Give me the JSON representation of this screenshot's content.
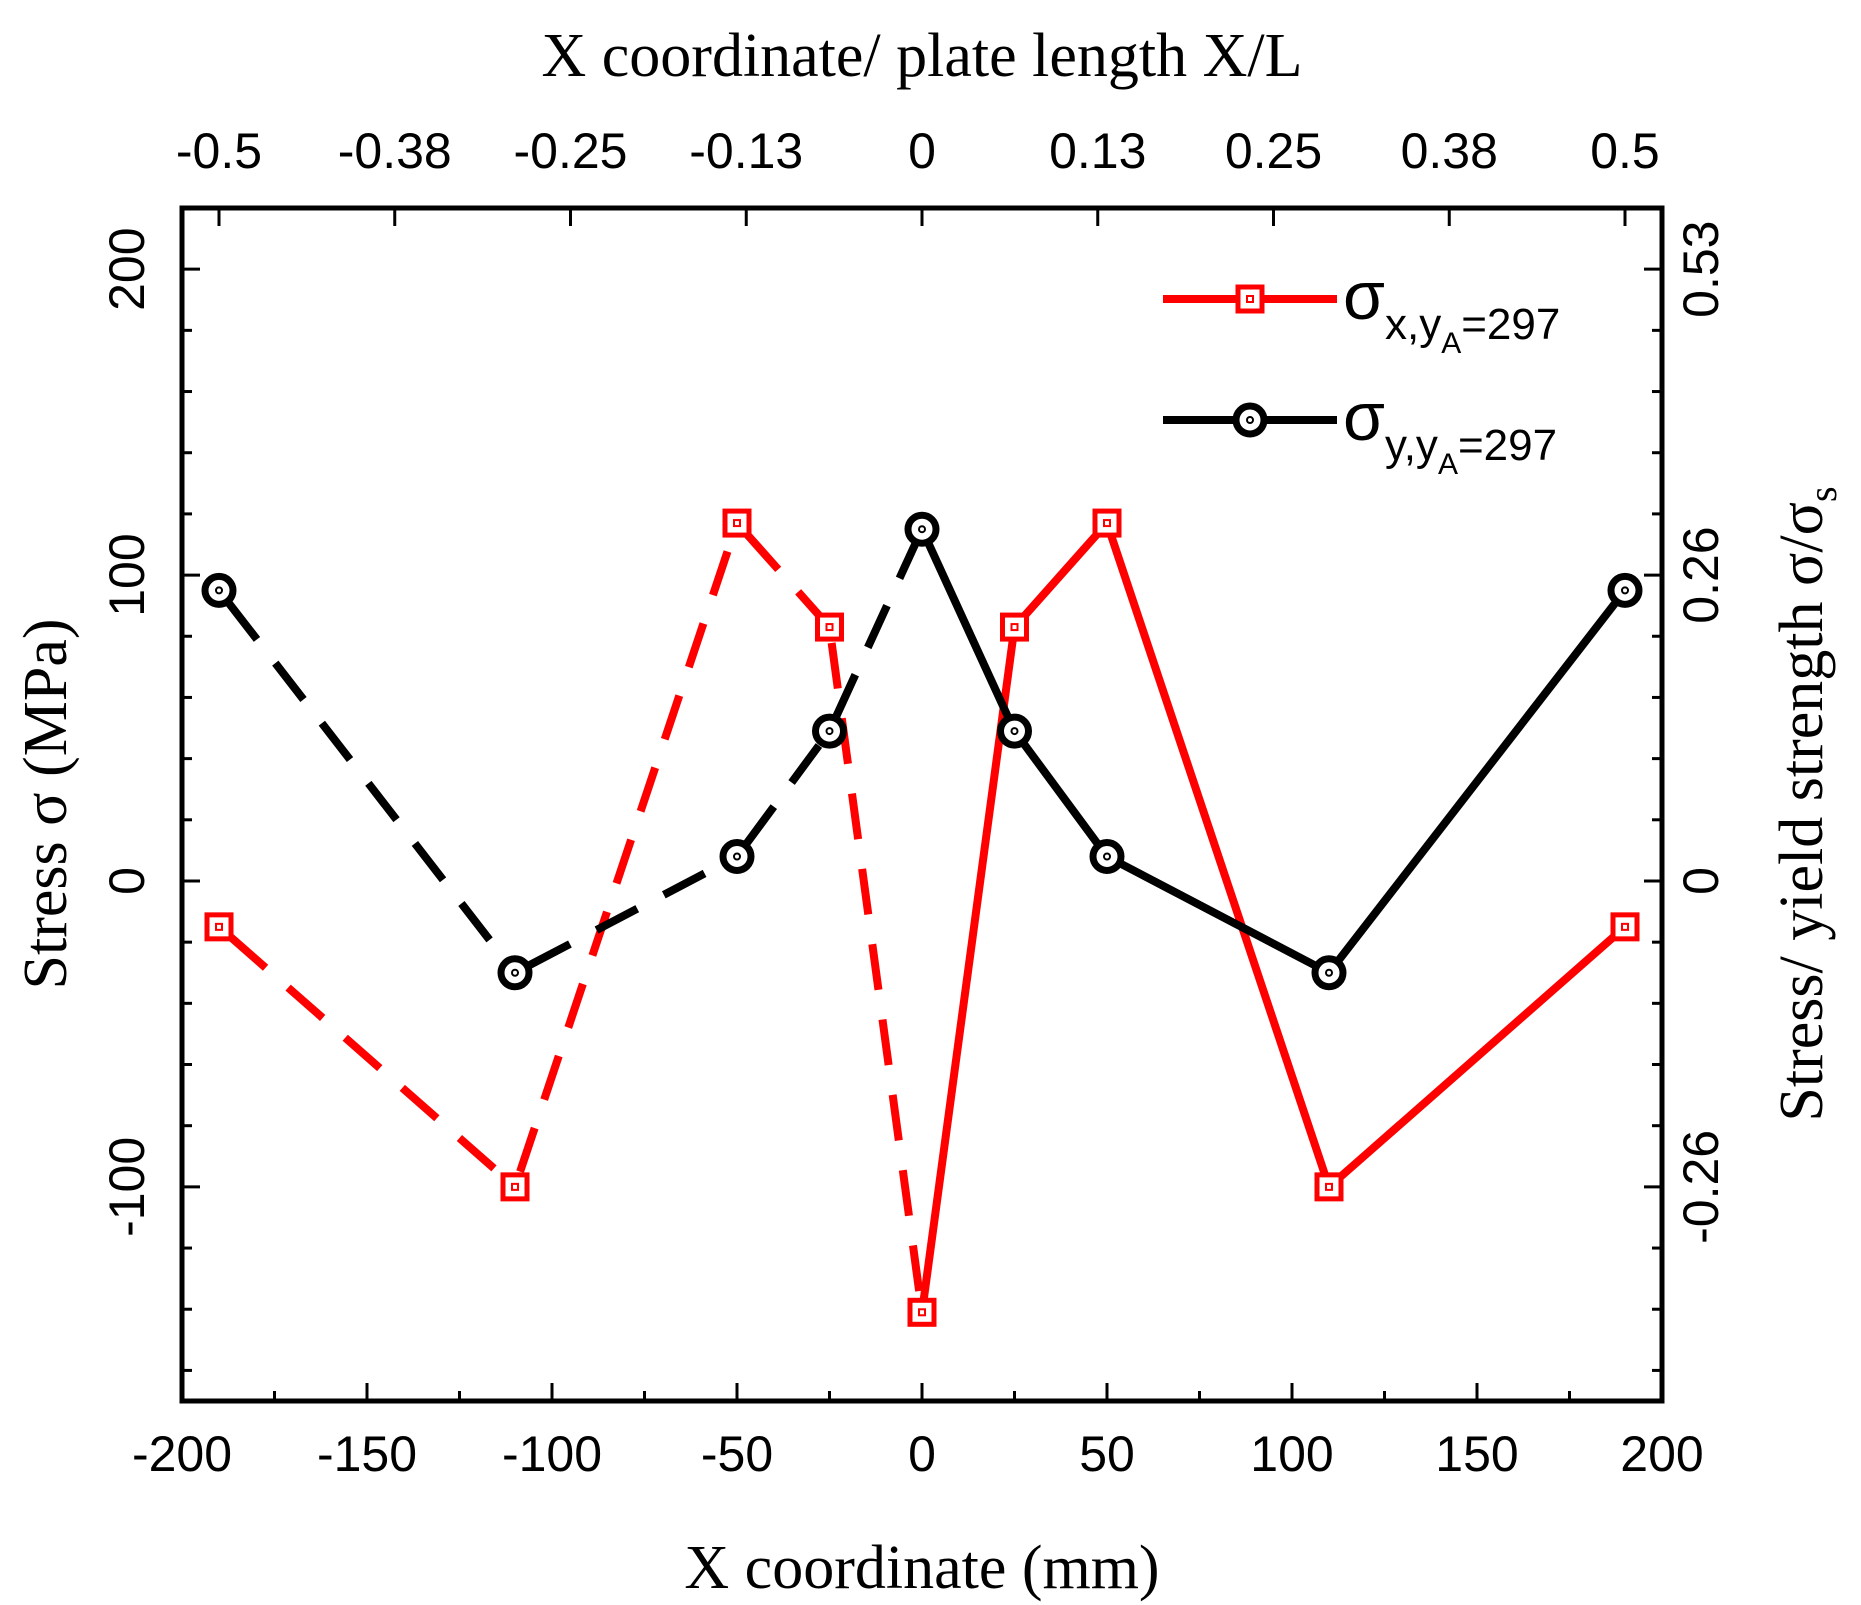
{
  "chart_data": {
    "type": "line",
    "xlabel": "X coordinate (mm)",
    "ylabel": "Stress σ (MPa)",
    "top_xlabel": "X coordinate/ plate length X/L",
    "right_ylabel": "Stress/ yield strength σ/σ",
    "right_ylabel_sub": "s",
    "xlim": [
      -200,
      200
    ],
    "ylim": [
      -170,
      220
    ],
    "x_ticks": [
      "-200",
      "-150",
      "-100",
      "-50",
      "0",
      "50",
      "100",
      "150",
      "200"
    ],
    "y_ticks": [
      "-100",
      "0",
      "100",
      "200"
    ],
    "top_ticks": [
      {
        "x": -190,
        "label": "-0.5"
      },
      {
        "x": -142.5,
        "label": "-0.38"
      },
      {
        "x": -95,
        "label": "-0.25"
      },
      {
        "x": -47.5,
        "label": "-0.13"
      },
      {
        "x": 0,
        "label": "0"
      },
      {
        "x": 47.5,
        "label": "0.13"
      },
      {
        "x": 95,
        "label": "0.25"
      },
      {
        "x": 142.5,
        "label": "0.38"
      },
      {
        "x": 190,
        "label": "0.5"
      }
    ],
    "right_ticks": [
      {
        "y": 200,
        "label": "0.53"
      },
      {
        "y": 100,
        "label": "0.26"
      },
      {
        "y": 0,
        "label": "0"
      },
      {
        "y": -100,
        "label": "-0.26"
      }
    ],
    "series": [
      {
        "name": "σx,yA=297",
        "symbol": "σ",
        "sub_main": "x,y",
        "sub_sub": "A",
        "suffix": "=297",
        "color": "#ff0000",
        "marker": "square",
        "x": [
          -190,
          -110,
          -50,
          -25,
          0,
          25,
          50,
          110,
          190
        ],
        "y": [
          -15,
          -100,
          117,
          83,
          -141,
          83,
          117,
          -100,
          -15
        ],
        "dashed_segments": [
          0,
          1,
          2,
          3
        ],
        "solid_segments": [
          4,
          5,
          6,
          7
        ]
      },
      {
        "name": "σy,yA=297",
        "symbol": "σ",
        "sub_main": "y,y",
        "sub_sub": "A",
        "suffix": "=297",
        "color": "#000000",
        "marker": "circle",
        "x": [
          -190,
          -110,
          -50,
          -25,
          0,
          25,
          50,
          110,
          190
        ],
        "y": [
          95,
          -30,
          8,
          49,
          115,
          49,
          8,
          -30,
          95
        ],
        "dashed_segments": [
          0,
          1,
          2,
          3
        ],
        "solid_segments": [
          4,
          5,
          6,
          7
        ]
      }
    ],
    "legend_position": "top-right"
  }
}
